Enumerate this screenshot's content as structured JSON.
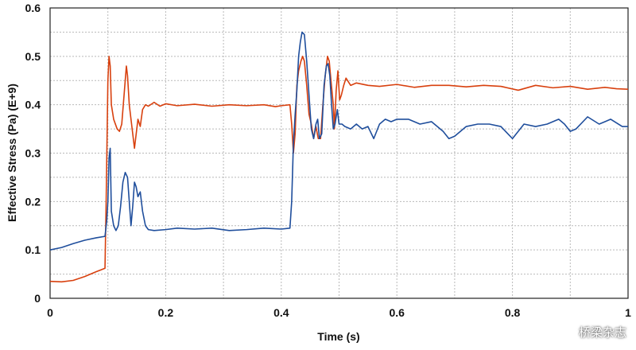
{
  "chart_data": {
    "type": "line",
    "title": "",
    "xlabel": "Time (s)",
    "ylabel": "Effective Stress (Pa) (E+9)",
    "xlim": [
      0,
      1
    ],
    "ylim": [
      0,
      0.6
    ],
    "xticks": [
      0,
      0.2,
      0.4,
      0.6,
      0.8,
      1
    ],
    "xtick_labels": [
      "0",
      "0.2",
      "0.4",
      "0.6",
      "0.8",
      "1"
    ],
    "yticks": [
      0,
      0.1,
      0.2,
      0.3,
      0.4,
      0.5,
      0.6
    ],
    "ytick_labels": [
      "0",
      "0.1",
      "0.2",
      "0.3",
      "0.4",
      "0.5",
      "0.6"
    ],
    "grid": true,
    "series": [
      {
        "color": "#d8400e",
        "points": [
          [
            0,
            0.035
          ],
          [
            0.02,
            0.034
          ],
          [
            0.04,
            0.037
          ],
          [
            0.06,
            0.045
          ],
          [
            0.08,
            0.055
          ],
          [
            0.095,
            0.062
          ],
          [
            0.097,
            0.2
          ],
          [
            0.1,
            0.45
          ],
          [
            0.102,
            0.5
          ],
          [
            0.104,
            0.48
          ],
          [
            0.106,
            0.4
          ],
          [
            0.11,
            0.37
          ],
          [
            0.116,
            0.35
          ],
          [
            0.12,
            0.345
          ],
          [
            0.124,
            0.36
          ],
          [
            0.128,
            0.42
          ],
          [
            0.132,
            0.48
          ],
          [
            0.134,
            0.46
          ],
          [
            0.137,
            0.4
          ],
          [
            0.14,
            0.37
          ],
          [
            0.143,
            0.34
          ],
          [
            0.146,
            0.31
          ],
          [
            0.149,
            0.34
          ],
          [
            0.152,
            0.37
          ],
          [
            0.156,
            0.355
          ],
          [
            0.16,
            0.39
          ],
          [
            0.165,
            0.4
          ],
          [
            0.17,
            0.397
          ],
          [
            0.18,
            0.405
          ],
          [
            0.19,
            0.397
          ],
          [
            0.2,
            0.402
          ],
          [
            0.22,
            0.398
          ],
          [
            0.25,
            0.401
          ],
          [
            0.28,
            0.397
          ],
          [
            0.31,
            0.4
          ],
          [
            0.34,
            0.398
          ],
          [
            0.37,
            0.4
          ],
          [
            0.39,
            0.396
          ],
          [
            0.4,
            0.398
          ],
          [
            0.415,
            0.4
          ],
          [
            0.418,
            0.36
          ],
          [
            0.421,
            0.3
          ],
          [
            0.424,
            0.34
          ],
          [
            0.427,
            0.44
          ],
          [
            0.43,
            0.47
          ],
          [
            0.434,
            0.49
          ],
          [
            0.437,
            0.5
          ],
          [
            0.44,
            0.49
          ],
          [
            0.444,
            0.44
          ],
          [
            0.448,
            0.38
          ],
          [
            0.452,
            0.36
          ],
          [
            0.456,
            0.33
          ],
          [
            0.46,
            0.355
          ],
          [
            0.464,
            0.33
          ],
          [
            0.468,
            0.33
          ],
          [
            0.472,
            0.4
          ],
          [
            0.476,
            0.46
          ],
          [
            0.48,
            0.5
          ],
          [
            0.483,
            0.49
          ],
          [
            0.486,
            0.45
          ],
          [
            0.49,
            0.4
          ],
          [
            0.492,
            0.35
          ],
          [
            0.495,
            0.43
          ],
          [
            0.498,
            0.47
          ],
          [
            0.501,
            0.41
          ],
          [
            0.504,
            0.42
          ],
          [
            0.508,
            0.44
          ],
          [
            0.512,
            0.455
          ],
          [
            0.52,
            0.44
          ],
          [
            0.53,
            0.445
          ],
          [
            0.55,
            0.44
          ],
          [
            0.57,
            0.438
          ],
          [
            0.6,
            0.442
          ],
          [
            0.63,
            0.436
          ],
          [
            0.66,
            0.44
          ],
          [
            0.69,
            0.44
          ],
          [
            0.72,
            0.437
          ],
          [
            0.75,
            0.44
          ],
          [
            0.78,
            0.438
          ],
          [
            0.81,
            0.43
          ],
          [
            0.84,
            0.44
          ],
          [
            0.87,
            0.435
          ],
          [
            0.9,
            0.438
          ],
          [
            0.93,
            0.432
          ],
          [
            0.96,
            0.436
          ],
          [
            0.98,
            0.433
          ],
          [
            1.0,
            0.432
          ]
        ]
      },
      {
        "color": "#1f4e9c",
        "points": [
          [
            0,
            0.1
          ],
          [
            0.02,
            0.105
          ],
          [
            0.04,
            0.113
          ],
          [
            0.06,
            0.12
          ],
          [
            0.08,
            0.125
          ],
          [
            0.095,
            0.128
          ],
          [
            0.098,
            0.16
          ],
          [
            0.1,
            0.2
          ],
          [
            0.102,
            0.29
          ],
          [
            0.104,
            0.31
          ],
          [
            0.106,
            0.18
          ],
          [
            0.11,
            0.15
          ],
          [
            0.114,
            0.14
          ],
          [
            0.118,
            0.15
          ],
          [
            0.122,
            0.19
          ],
          [
            0.126,
            0.24
          ],
          [
            0.13,
            0.26
          ],
          [
            0.134,
            0.25
          ],
          [
            0.137,
            0.2
          ],
          [
            0.14,
            0.15
          ],
          [
            0.143,
            0.19
          ],
          [
            0.146,
            0.24
          ],
          [
            0.149,
            0.23
          ],
          [
            0.152,
            0.21
          ],
          [
            0.156,
            0.22
          ],
          [
            0.16,
            0.18
          ],
          [
            0.165,
            0.15
          ],
          [
            0.17,
            0.142
          ],
          [
            0.18,
            0.14
          ],
          [
            0.2,
            0.142
          ],
          [
            0.22,
            0.145
          ],
          [
            0.25,
            0.143
          ],
          [
            0.28,
            0.145
          ],
          [
            0.31,
            0.14
          ],
          [
            0.34,
            0.142
          ],
          [
            0.37,
            0.145
          ],
          [
            0.4,
            0.143
          ],
          [
            0.415,
            0.145
          ],
          [
            0.418,
            0.2
          ],
          [
            0.421,
            0.32
          ],
          [
            0.424,
            0.38
          ],
          [
            0.427,
            0.43
          ],
          [
            0.43,
            0.5
          ],
          [
            0.433,
            0.53
          ],
          [
            0.436,
            0.55
          ],
          [
            0.44,
            0.545
          ],
          [
            0.444,
            0.49
          ],
          [
            0.448,
            0.42
          ],
          [
            0.452,
            0.35
          ],
          [
            0.456,
            0.33
          ],
          [
            0.46,
            0.36
          ],
          [
            0.463,
            0.37
          ],
          [
            0.466,
            0.33
          ],
          [
            0.47,
            0.34
          ],
          [
            0.474,
            0.44
          ],
          [
            0.478,
            0.48
          ],
          [
            0.481,
            0.485
          ],
          [
            0.484,
            0.46
          ],
          [
            0.487,
            0.4
          ],
          [
            0.49,
            0.35
          ],
          [
            0.493,
            0.36
          ],
          [
            0.497,
            0.39
          ],
          [
            0.5,
            0.36
          ],
          [
            0.505,
            0.36
          ],
          [
            0.51,
            0.355
          ],
          [
            0.52,
            0.35
          ],
          [
            0.53,
            0.36
          ],
          [
            0.54,
            0.35
          ],
          [
            0.55,
            0.355
          ],
          [
            0.56,
            0.33
          ],
          [
            0.57,
            0.36
          ],
          [
            0.58,
            0.37
          ],
          [
            0.59,
            0.365
          ],
          [
            0.6,
            0.37
          ],
          [
            0.62,
            0.37
          ],
          [
            0.64,
            0.36
          ],
          [
            0.66,
            0.365
          ],
          [
            0.68,
            0.345
          ],
          [
            0.69,
            0.33
          ],
          [
            0.7,
            0.335
          ],
          [
            0.72,
            0.355
          ],
          [
            0.74,
            0.36
          ],
          [
            0.76,
            0.36
          ],
          [
            0.78,
            0.355
          ],
          [
            0.8,
            0.33
          ],
          [
            0.82,
            0.36
          ],
          [
            0.84,
            0.355
          ],
          [
            0.86,
            0.36
          ],
          [
            0.88,
            0.37
          ],
          [
            0.89,
            0.36
          ],
          [
            0.9,
            0.345
          ],
          [
            0.91,
            0.35
          ],
          [
            0.93,
            0.375
          ],
          [
            0.95,
            0.36
          ],
          [
            0.97,
            0.37
          ],
          [
            0.99,
            0.355
          ],
          [
            1.0,
            0.355
          ]
        ]
      }
    ]
  },
  "watermark": {
    "text": "桥梁杂志",
    "icon": "wechat-icon"
  }
}
